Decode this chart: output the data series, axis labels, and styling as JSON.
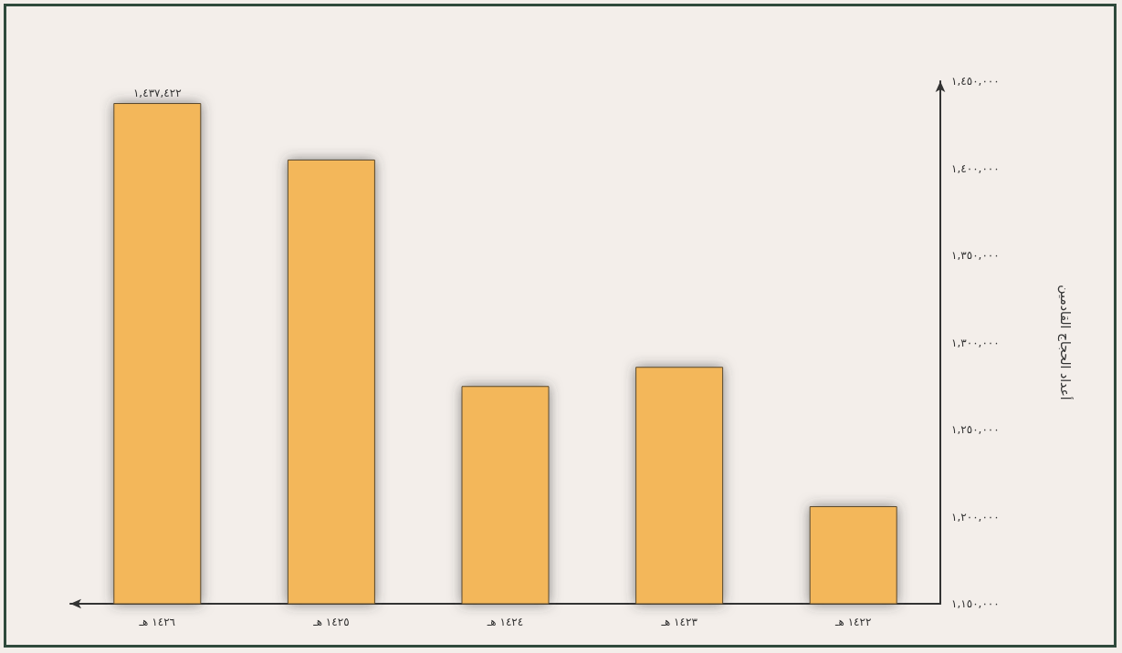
{
  "chart_data": {
    "type": "bar",
    "ylabel": "أعداد الحجاج القادمين",
    "categories": [
      "١٤٢٦ هـ",
      "١٤٢٥ هـ",
      "١٤٢٤ هـ",
      "١٤٢٣ هـ",
      "١٤٢٢ هـ"
    ],
    "values": [
      1437422,
      1405000,
      1275000,
      1286000,
      1206000
    ],
    "value_labels": [
      "١,٤٣٧,٤٢٢",
      null,
      null,
      null,
      null
    ],
    "color": "#f3b75a",
    "ylim": [
      1150000,
      1450000
    ],
    "yticks": [
      {
        "value": 1150000,
        "label": "١,١٥٠,٠٠٠"
      },
      {
        "value": 1200000,
        "label": "١,٢٠٠,٠٠٠"
      },
      {
        "value": 1250000,
        "label": "١,٢٥٠,٠٠٠"
      },
      {
        "value": 1300000,
        "label": "١,٣٠٠,٠٠٠"
      },
      {
        "value": 1350000,
        "label": "١,٣٥٠,٠٠٠"
      },
      {
        "value": 1400000,
        "label": "١,٤٠٠,٠٠٠"
      },
      {
        "value": 1450000,
        "label": "١,٤٥٠,٠٠٠"
      }
    ],
    "grid": false
  }
}
